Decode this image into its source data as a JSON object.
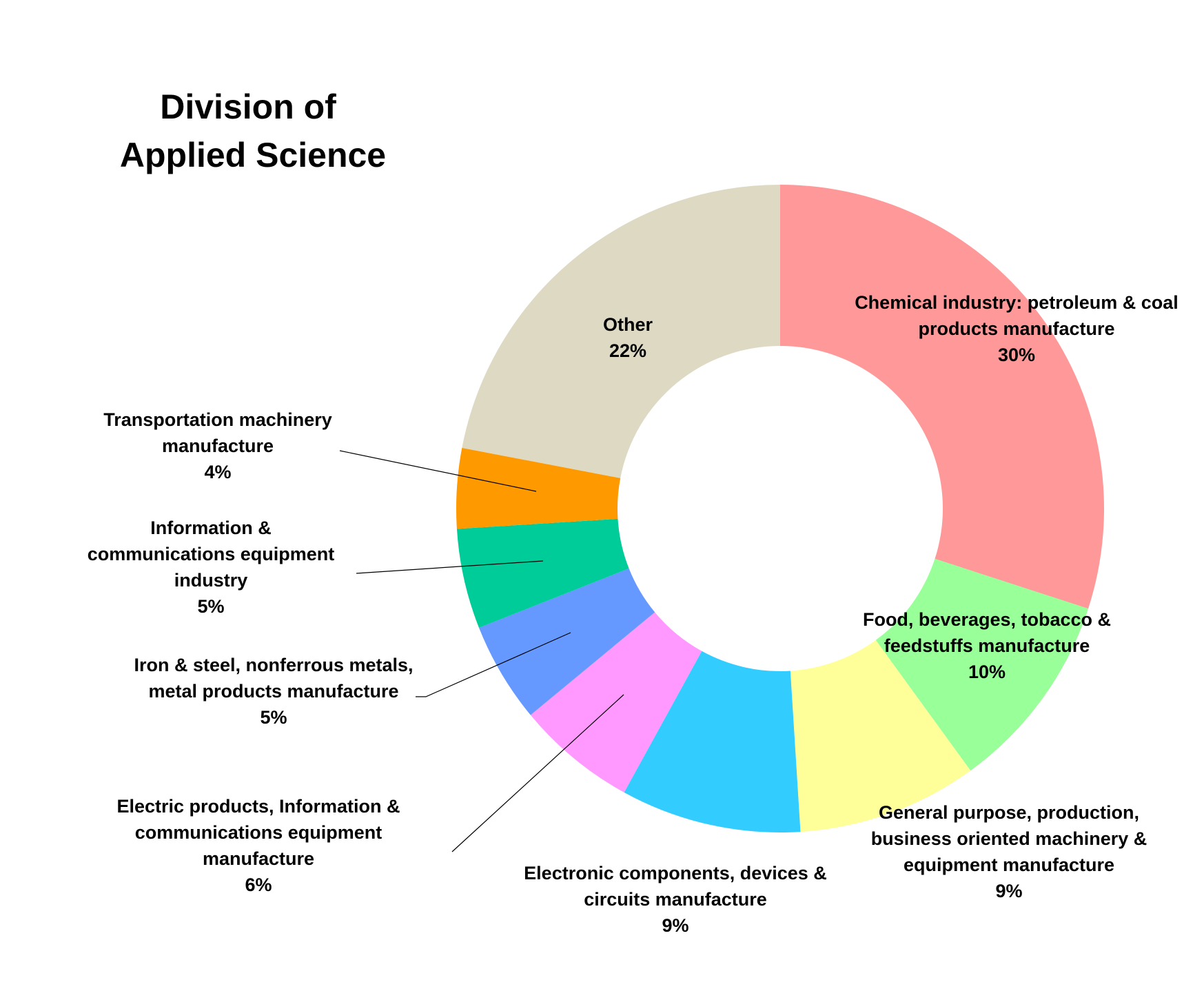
{
  "chart_data": {
    "type": "pie",
    "variant": "donut",
    "title": [
      "Division of",
      "Applied Science"
    ],
    "legend": "none",
    "slices": [
      {
        "name": "Chemical industry: petroleum & coal products manufacture",
        "label_lines": [
          "Chemical industry: petroleum & coal",
          "products manufacture"
        ],
        "value": 30,
        "pct_label": "30%",
        "color": "#FF9999"
      },
      {
        "name": "Food, beverages, tobacco & feedstuffs manufacture",
        "label_lines": [
          "Food, beverages, tobacco &",
          "feedstuffs manufacture"
        ],
        "value": 10,
        "pct_label": "10%",
        "color": "#99FF99"
      },
      {
        "name": "General purpose, production, business oriented machinery & equipment manufacture",
        "label_lines": [
          "General purpose, production,",
          "business oriented machinery &",
          "equipment manufacture"
        ],
        "value": 9,
        "pct_label": "9%",
        "color": "#FFFF99"
      },
      {
        "name": "Electronic components, devices & circuits manufacture",
        "label_lines": [
          "Electronic components, devices &",
          "circuits manufacture"
        ],
        "value": 9,
        "pct_label": "9%",
        "color": "#33CCFF"
      },
      {
        "name": "Electric products, Information & communications equipment manufacture",
        "label_lines": [
          "Electric products, Information &",
          "communications equipment",
          "manufacture"
        ],
        "value": 6,
        "pct_label": "6%",
        "color": "#FF99FF"
      },
      {
        "name": "Iron & steel, nonferrous metals, metal products manufacture",
        "label_lines": [
          "Iron & steel, nonferrous metals,",
          "metal products manufacture"
        ],
        "value": 5,
        "pct_label": "5%",
        "color": "#6699FF"
      },
      {
        "name": "Information & communications equipment industry",
        "label_lines": [
          "Information &",
          "communications equipment",
          "industry"
        ],
        "value": 5,
        "pct_label": "5%",
        "color": "#00CC99"
      },
      {
        "name": "Transportation machinery manufacture",
        "label_lines": [
          "Transportation machinery",
          "manufacture"
        ],
        "value": 4,
        "pct_label": "4%",
        "color": "#FF9900"
      },
      {
        "name": "Other",
        "label_lines": [
          "Other"
        ],
        "value": 22,
        "pct_label": "22%",
        "color": "#DDD9C3"
      }
    ]
  }
}
